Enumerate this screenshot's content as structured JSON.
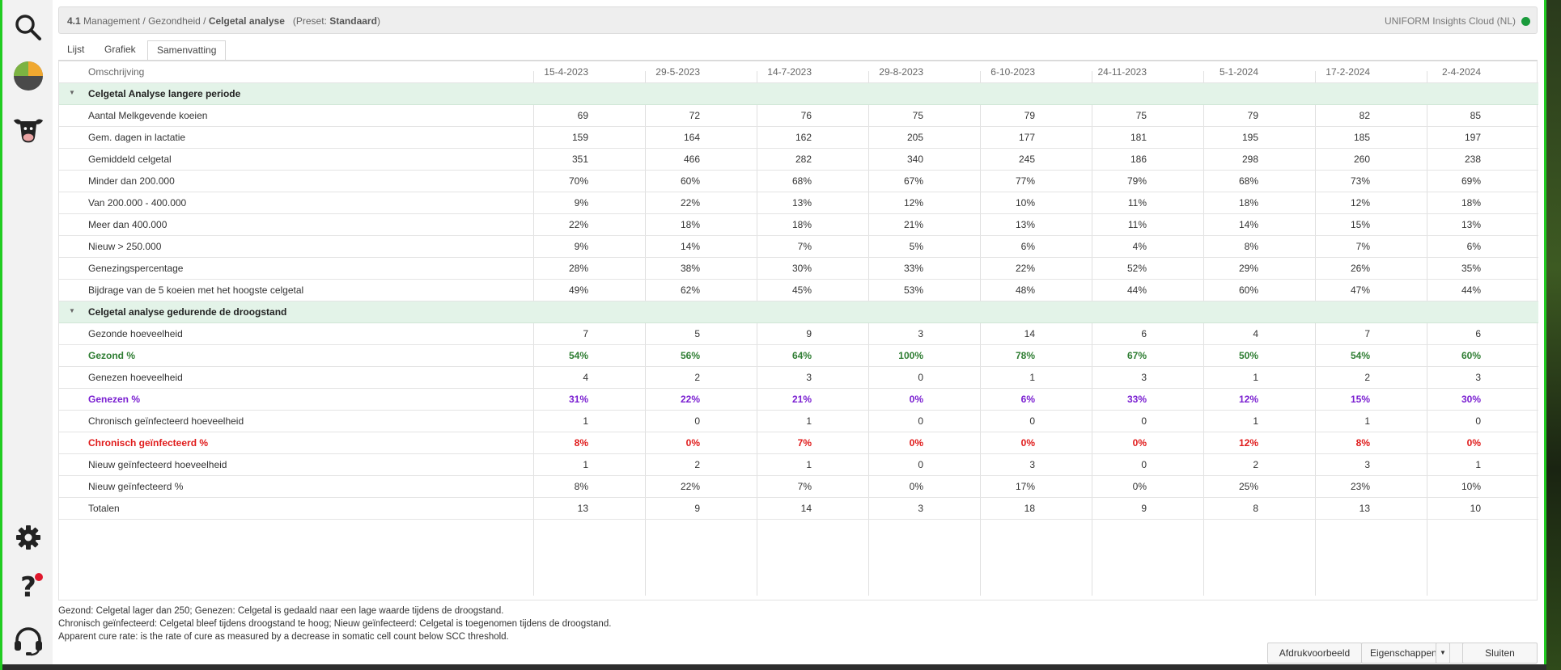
{
  "header": {
    "number": "4.1",
    "path": "Management / Gezondheid /",
    "title": "Celgetal analyse",
    "preset_prefix": "(Preset:",
    "preset_name": "Standaard",
    "preset_suffix": ")",
    "cloud": "UNIFORM Insights Cloud (NL)",
    "status_color": "#1a9b3c"
  },
  "tabs": [
    {
      "label": "Lijst"
    },
    {
      "label": "Grafiek"
    },
    {
      "label": "Samenvatting"
    }
  ],
  "table": {
    "description_header": "Omschrijving",
    "dates": [
      "15-4-2023",
      "29-5-2023",
      "14-7-2023",
      "29-8-2023",
      "6-10-2023",
      "24-11-2023",
      "5-1-2024",
      "17-2-2024",
      "2-4-2024"
    ],
    "rows": [
      {
        "group": true,
        "label": "Celgetal Analyse langere periode",
        "values": []
      },
      {
        "label": "Aantal Melkgevende koeien",
        "values": [
          "69",
          "72",
          "76",
          "75",
          "79",
          "75",
          "79",
          "82",
          "85"
        ]
      },
      {
        "label": "Gem. dagen in lactatie",
        "values": [
          "159",
          "164",
          "162",
          "205",
          "177",
          "181",
          "195",
          "185",
          "197"
        ]
      },
      {
        "label": "Gemiddeld celgetal",
        "values": [
          "351",
          "466",
          "282",
          "340",
          "245",
          "186",
          "298",
          "260",
          "238"
        ]
      },
      {
        "label": "Minder dan 200.000",
        "values": [
          "70%",
          "60%",
          "68%",
          "67%",
          "77%",
          "79%",
          "68%",
          "73%",
          "69%"
        ]
      },
      {
        "label": "Van 200.000 - 400.000",
        "values": [
          "9%",
          "22%",
          "13%",
          "12%",
          "10%",
          "11%",
          "18%",
          "12%",
          "18%"
        ]
      },
      {
        "label": "Meer dan 400.000",
        "values": [
          "22%",
          "18%",
          "18%",
          "21%",
          "13%",
          "11%",
          "14%",
          "15%",
          "13%"
        ]
      },
      {
        "label": "Nieuw > 250.000",
        "values": [
          "9%",
          "14%",
          "7%",
          "5%",
          "6%",
          "4%",
          "8%",
          "7%",
          "6%"
        ]
      },
      {
        "label": "Genezingspercentage",
        "values": [
          "28%",
          "38%",
          "30%",
          "33%",
          "22%",
          "52%",
          "29%",
          "26%",
          "35%"
        ]
      },
      {
        "label": "Bijdrage van de 5 koeien met het hoogste celgetal",
        "values": [
          "49%",
          "62%",
          "45%",
          "53%",
          "48%",
          "44%",
          "60%",
          "47%",
          "44%"
        ]
      },
      {
        "group": true,
        "label": "Celgetal analyse gedurende de droogstand",
        "values": []
      },
      {
        "label": "Gezonde hoeveelheid",
        "values": [
          "7",
          "5",
          "9",
          "3",
          "14",
          "6",
          "4",
          "7",
          "6"
        ]
      },
      {
        "label": "Gezond %",
        "style": "green",
        "values": [
          "54%",
          "56%",
          "64%",
          "100%",
          "78%",
          "67%",
          "50%",
          "54%",
          "60%"
        ]
      },
      {
        "label": "Genezen hoeveelheid",
        "values": [
          "4",
          "2",
          "3",
          "0",
          "1",
          "3",
          "1",
          "2",
          "3"
        ]
      },
      {
        "label": "Genezen %",
        "style": "purple",
        "values": [
          "31%",
          "22%",
          "21%",
          "0%",
          "6%",
          "33%",
          "12%",
          "15%",
          "30%"
        ]
      },
      {
        "label": "Chronisch geïnfecteerd hoeveelheid",
        "values": [
          "1",
          "0",
          "1",
          "0",
          "0",
          "0",
          "1",
          "1",
          "0"
        ]
      },
      {
        "label": "Chronisch geïnfecteerd %",
        "style": "red",
        "values": [
          "8%",
          "0%",
          "7%",
          "0%",
          "0%",
          "0%",
          "12%",
          "8%",
          "0%"
        ]
      },
      {
        "label": "Nieuw geïnfecteerd hoeveelheid",
        "values": [
          "1",
          "2",
          "1",
          "0",
          "3",
          "0",
          "2",
          "3",
          "1"
        ]
      },
      {
        "label": "Nieuw geïnfecteerd %",
        "values": [
          "8%",
          "22%",
          "7%",
          "0%",
          "17%",
          "0%",
          "25%",
          "23%",
          "10%"
        ]
      },
      {
        "label": "Totalen",
        "values": [
          "13",
          "9",
          "14",
          "3",
          "18",
          "9",
          "8",
          "13",
          "10"
        ]
      }
    ]
  },
  "colors": {
    "green": "#2e7d32",
    "purple": "#7a1fd1",
    "red": "#e01b1b",
    "group_bg": "#e3f3e8",
    "frame": "#22cc22"
  },
  "footer": {
    "line1": "Gezond: Celgetal lager dan 250; Genezen: Celgetal is gedaald naar een lage waarde tijdens de droogstand.",
    "line2": "Chronisch geïnfecteerd: Celgetal bleef tijdens droogstand te hoog; Nieuw geïnfecteerd: Celgetal is toegenomen tijdens de droogstand.",
    "line3": "Apparent cure rate: is the rate of cure as measured by a decrease in somatic cell count below SCC threshold."
  },
  "buttons": {
    "print_preview": "Afdrukvoorbeeld",
    "properties": "Eigenschappen",
    "close": "Sluiten"
  },
  "sidebar_icons": [
    "search-icon",
    "pie-chart-icon",
    "cow-icon",
    "gear-icon",
    "help-icon",
    "headset-icon"
  ]
}
